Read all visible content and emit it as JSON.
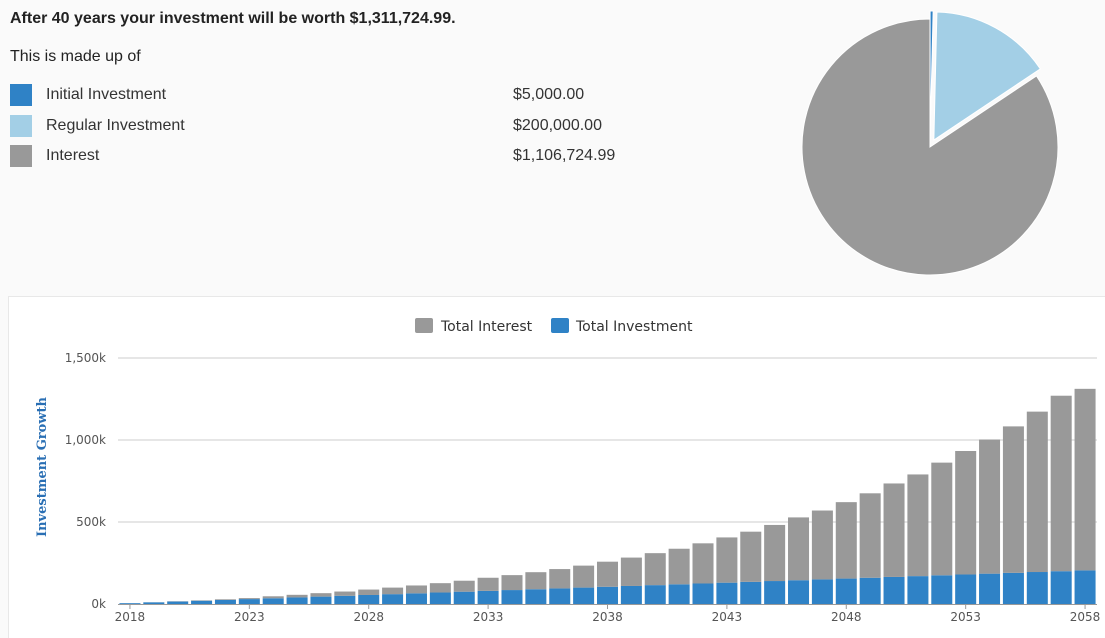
{
  "summary": {
    "headline": "After 40 years your investment will be worth $1,311,724.99.",
    "made_up_of": "This is made up of",
    "items": [
      {
        "label": "Initial Investment",
        "value": "$5,000.00",
        "color": "#2f82c6",
        "amount": 5000
      },
      {
        "label": "Regular Investment",
        "value": "$200,000.00",
        "color": "#a3cfe6",
        "amount": 200000
      },
      {
        "label": "Interest",
        "value": "$1,106,724.99",
        "color": "#999999",
        "amount": 1106724.99
      }
    ]
  },
  "pie_chart": {
    "type": "pie",
    "slices": [
      {
        "name": "Initial Investment",
        "value": 5000,
        "color": "#2f82c6"
      },
      {
        "name": "Regular Investment",
        "value": 200000,
        "color": "#a3cfe6"
      },
      {
        "name": "Interest",
        "value": 1106724.99,
        "color": "#999999"
      }
    ]
  },
  "chart_data": {
    "type": "bar",
    "stacked": true,
    "ylabel": "Investment Growth",
    "ylim": [
      0,
      1500000
    ],
    "y_ticks": [
      0,
      500000,
      1000000,
      1500000
    ],
    "y_tick_labels": [
      "0k",
      "500k",
      "1,000k",
      "1,500k"
    ],
    "x_tick_labels": [
      "2018",
      "2023",
      "2028",
      "2033",
      "2038",
      "2043",
      "2048",
      "2053",
      "2058"
    ],
    "legend": [
      "Total Interest",
      "Total Investment"
    ],
    "legend_position": "top-center",
    "grid": true,
    "categories": [
      2018,
      2019,
      2020,
      2021,
      2022,
      2023,
      2024,
      2025,
      2026,
      2027,
      2028,
      2029,
      2030,
      2031,
      2032,
      2033,
      2034,
      2035,
      2036,
      2037,
      2038,
      2039,
      2040,
      2041,
      2042,
      2043,
      2044,
      2045,
      2046,
      2047,
      2048,
      2049,
      2050,
      2051,
      2052,
      2053,
      2054,
      2055,
      2056,
      2057,
      2058
    ],
    "series": [
      {
        "name": "Total Investment",
        "color": "#2f82c6",
        "values": [
          5000,
          10000,
          15000,
          20000,
          25000,
          30000,
          35000,
          40000,
          45000,
          50000,
          55000,
          60000,
          65000,
          70000,
          75000,
          80000,
          85000,
          90000,
          95000,
          100000,
          105000,
          110000,
          115000,
          120000,
          125000,
          130000,
          135000,
          140000,
          145000,
          150000,
          155000,
          160000,
          165000,
          170000,
          175000,
          180000,
          185000,
          190000,
          195000,
          200000,
          205000
        ]
      },
      {
        "name": "Total Interest",
        "color": "#999999",
        "values": [
          0,
          500,
          1500,
          2500,
          4000,
          6000,
          12000,
          16000,
          21000,
          26000,
          33000,
          40000,
          48000,
          57000,
          67000,
          80000,
          91000,
          104000,
          118000,
          134000,
          153000,
          173000,
          195000,
          217000,
          245000,
          276000,
          306000,
          342000,
          383000,
          420000,
          466000,
          515000,
          570000,
          620000,
          687000,
          753000,
          818000,
          893000,
          978000,
          1070000,
          1107000
        ]
      }
    ]
  }
}
